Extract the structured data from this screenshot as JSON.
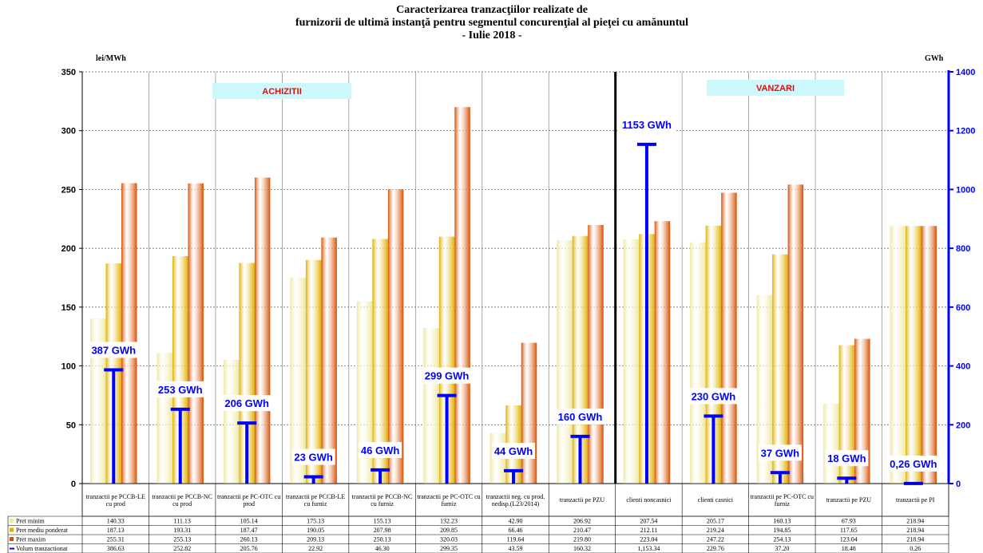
{
  "chart_data": {
    "type": "bar",
    "title": [
      "Caracterizarea tranzacţiilor realizate de",
      "furnizorii de ultimă instanţă pentru segmentul concurenţial al pieţei cu amănuntul",
      "- Iulie 2018 -"
    ],
    "ylabel": "lei/MWh",
    "y2label": "GWh",
    "annotations": [
      "ACHIZITII",
      "VANZARI"
    ],
    "categories": [
      "tranzactii pe PCCB-LE cu prod",
      "tranzactii pe PCCB-NC cu prod",
      "tranzactii pe PC-OTC cu prod",
      "tranzactii pe PCCB-LE cu furniz",
      "tranzactii pe PCCB-NC cu furniz",
      "tranzactii pe PC-OTC cu furniz",
      "tranzactii neg. cu prod. nedisp.(L23/2014)",
      "tranzactii pe PZU",
      "clienti noncasnici",
      "clienti casnici",
      "tranzactii pe PC-OTC cu furniz",
      "tranzactii pe PZU",
      "tranzactii pe PI"
    ],
    "series": [
      {
        "name": "Pret minim",
        "color": "#eee8a0",
        "values": [
          140.33,
          111.13,
          105.14,
          175.13,
          155.13,
          132.23,
          42.9,
          206.92,
          207.54,
          205.17,
          160.13,
          67.93,
          218.94
        ]
      },
      {
        "name": "Pret mediu ponderat",
        "color": "#e0b000",
        "values": [
          187.13,
          193.31,
          187.47,
          190.05,
          207.98,
          209.85,
          66.46,
          210.47,
          212.11,
          219.24,
          194.85,
          117.65,
          218.94
        ]
      },
      {
        "name": "Pret maxim",
        "color": "#d85000",
        "values": [
          255.31,
          255.13,
          260.13,
          209.13,
          250.13,
          320.03,
          119.64,
          219.8,
          223.04,
          247.22,
          254.13,
          123.04,
          218.94
        ]
      },
      {
        "name": "Volum tranzactionat",
        "color": "#0000ff",
        "axis": "y2",
        "values": [
          386.63,
          252.82,
          205.76,
          22.92,
          46.3,
          299.35,
          43.59,
          160.32,
          1153.34,
          229.76,
          37.2,
          18.48,
          0.26
        ],
        "value_labels": [
          "387 GWh",
          "253 GWh",
          "206 GWh",
          "23 GWh",
          "46 GWh",
          "299 GWh",
          "44 GWh",
          "160 GWh",
          "1153 GWh",
          "230 GWh",
          "37 GWh",
          "18 GWh",
          "0,26 GWh"
        ]
      }
    ],
    "ylim": [
      0,
      350
    ],
    "yticks": [
      0,
      50,
      100,
      150,
      200,
      250,
      300,
      350
    ],
    "y2lim": [
      0,
      1400
    ],
    "y2ticks": [
      0,
      200,
      400,
      600,
      800,
      1000,
      1200,
      1400
    ],
    "grid": true
  }
}
